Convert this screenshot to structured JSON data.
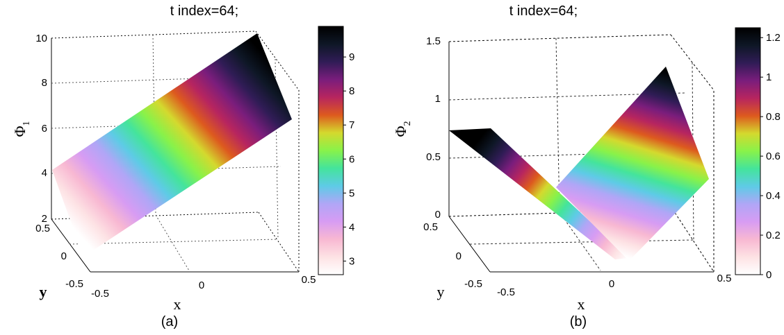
{
  "colormap": [
    "#ffffff",
    "#fde2e4",
    "#f8b8d2",
    "#d79cf3",
    "#b0a6f6",
    "#5ecbe6",
    "#44e49c",
    "#88f24a",
    "#d4d92e",
    "#dd5a1e",
    "#b7255f",
    "#7a1d7c",
    "#301c56",
    "#0e1726",
    "#000000"
  ],
  "chart_data": [
    {
      "type": "surface",
      "title": "t index=64;",
      "zlabel_base": "Φ",
      "zlabel_sub": "1",
      "xlabel": "x",
      "ylabel": "y",
      "caption": "(a)",
      "x_ticks": [
        "-0.5",
        "0",
        "0.5"
      ],
      "y_ticks": [
        "-0.5",
        "0",
        "0.5"
      ],
      "z_ticks": [
        "2",
        "4",
        "6",
        "8",
        "10"
      ],
      "zlim": [
        2,
        10
      ],
      "colorbar_ticks": [
        "3",
        "4",
        "5",
        "6",
        "7",
        "8",
        "9"
      ],
      "clim": [
        2.6,
        9.9
      ],
      "grid": true
    },
    {
      "type": "surface",
      "title": "t index=64;",
      "zlabel_base": "Φ",
      "zlabel_sub": "2",
      "xlabel": "x",
      "ylabel": "y",
      "caption": "(b)",
      "x_ticks": [
        "-0.5",
        "0",
        "0.5"
      ],
      "y_ticks": [
        "-0.5",
        "0",
        "0.5"
      ],
      "z_ticks": [
        "0",
        "0.5",
        "1",
        "1.5"
      ],
      "zlim": [
        0,
        1.5
      ],
      "colorbar_ticks": [
        "0",
        "0.2",
        "0.4",
        "0.6",
        "0.8",
        "1",
        "1.2"
      ],
      "clim": [
        0,
        1.25
      ],
      "grid": true
    }
  ]
}
